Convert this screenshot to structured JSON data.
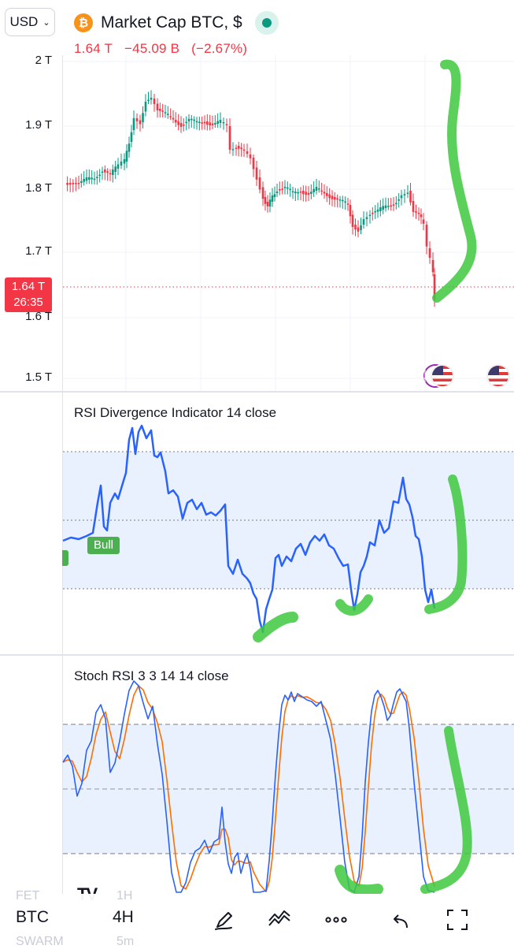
{
  "header": {
    "currency": "USD",
    "symbol_title": "Market Cap BTC, $",
    "icon": "bitcoin-icon",
    "last_value": "1.64 T",
    "change_abs": "−45.09 B",
    "change_pct": "(−2.67%)"
  },
  "price_axis": {
    "labels": [
      "2 T",
      "1.9 T",
      "1.8 T",
      "1.7 T",
      "1.6 T",
      "1.5 T"
    ],
    "current_badge_value": "1.64 T",
    "current_badge_timer": "26:35"
  },
  "colors": {
    "up": "#089981",
    "down": "#f23645",
    "rsi_line": "#2962ff",
    "stoch_k": "#2962ff",
    "stoch_d": "#ff6d00",
    "band_fill": "#e8f1fd",
    "highlight": "#3ec93e"
  },
  "indicators": {
    "rsi": {
      "title": "RSI Divergence Indicator 14 close",
      "bull_label": "Bull"
    },
    "stoch": {
      "title": "Stoch RSI 3 3 14 14 close"
    }
  },
  "bottom_bar": {
    "ghost_symbol": "FET",
    "ghost_interval": "1H",
    "ghost_symbol_2": "SWARM",
    "ghost_interval_2": "5m",
    "symbol": "BTC",
    "interval": "4H",
    "icons": [
      "drawing-pencil-icon",
      "indicators-icon",
      "more-icon",
      "undo-icon",
      "fullscreen-icon"
    ]
  }
}
